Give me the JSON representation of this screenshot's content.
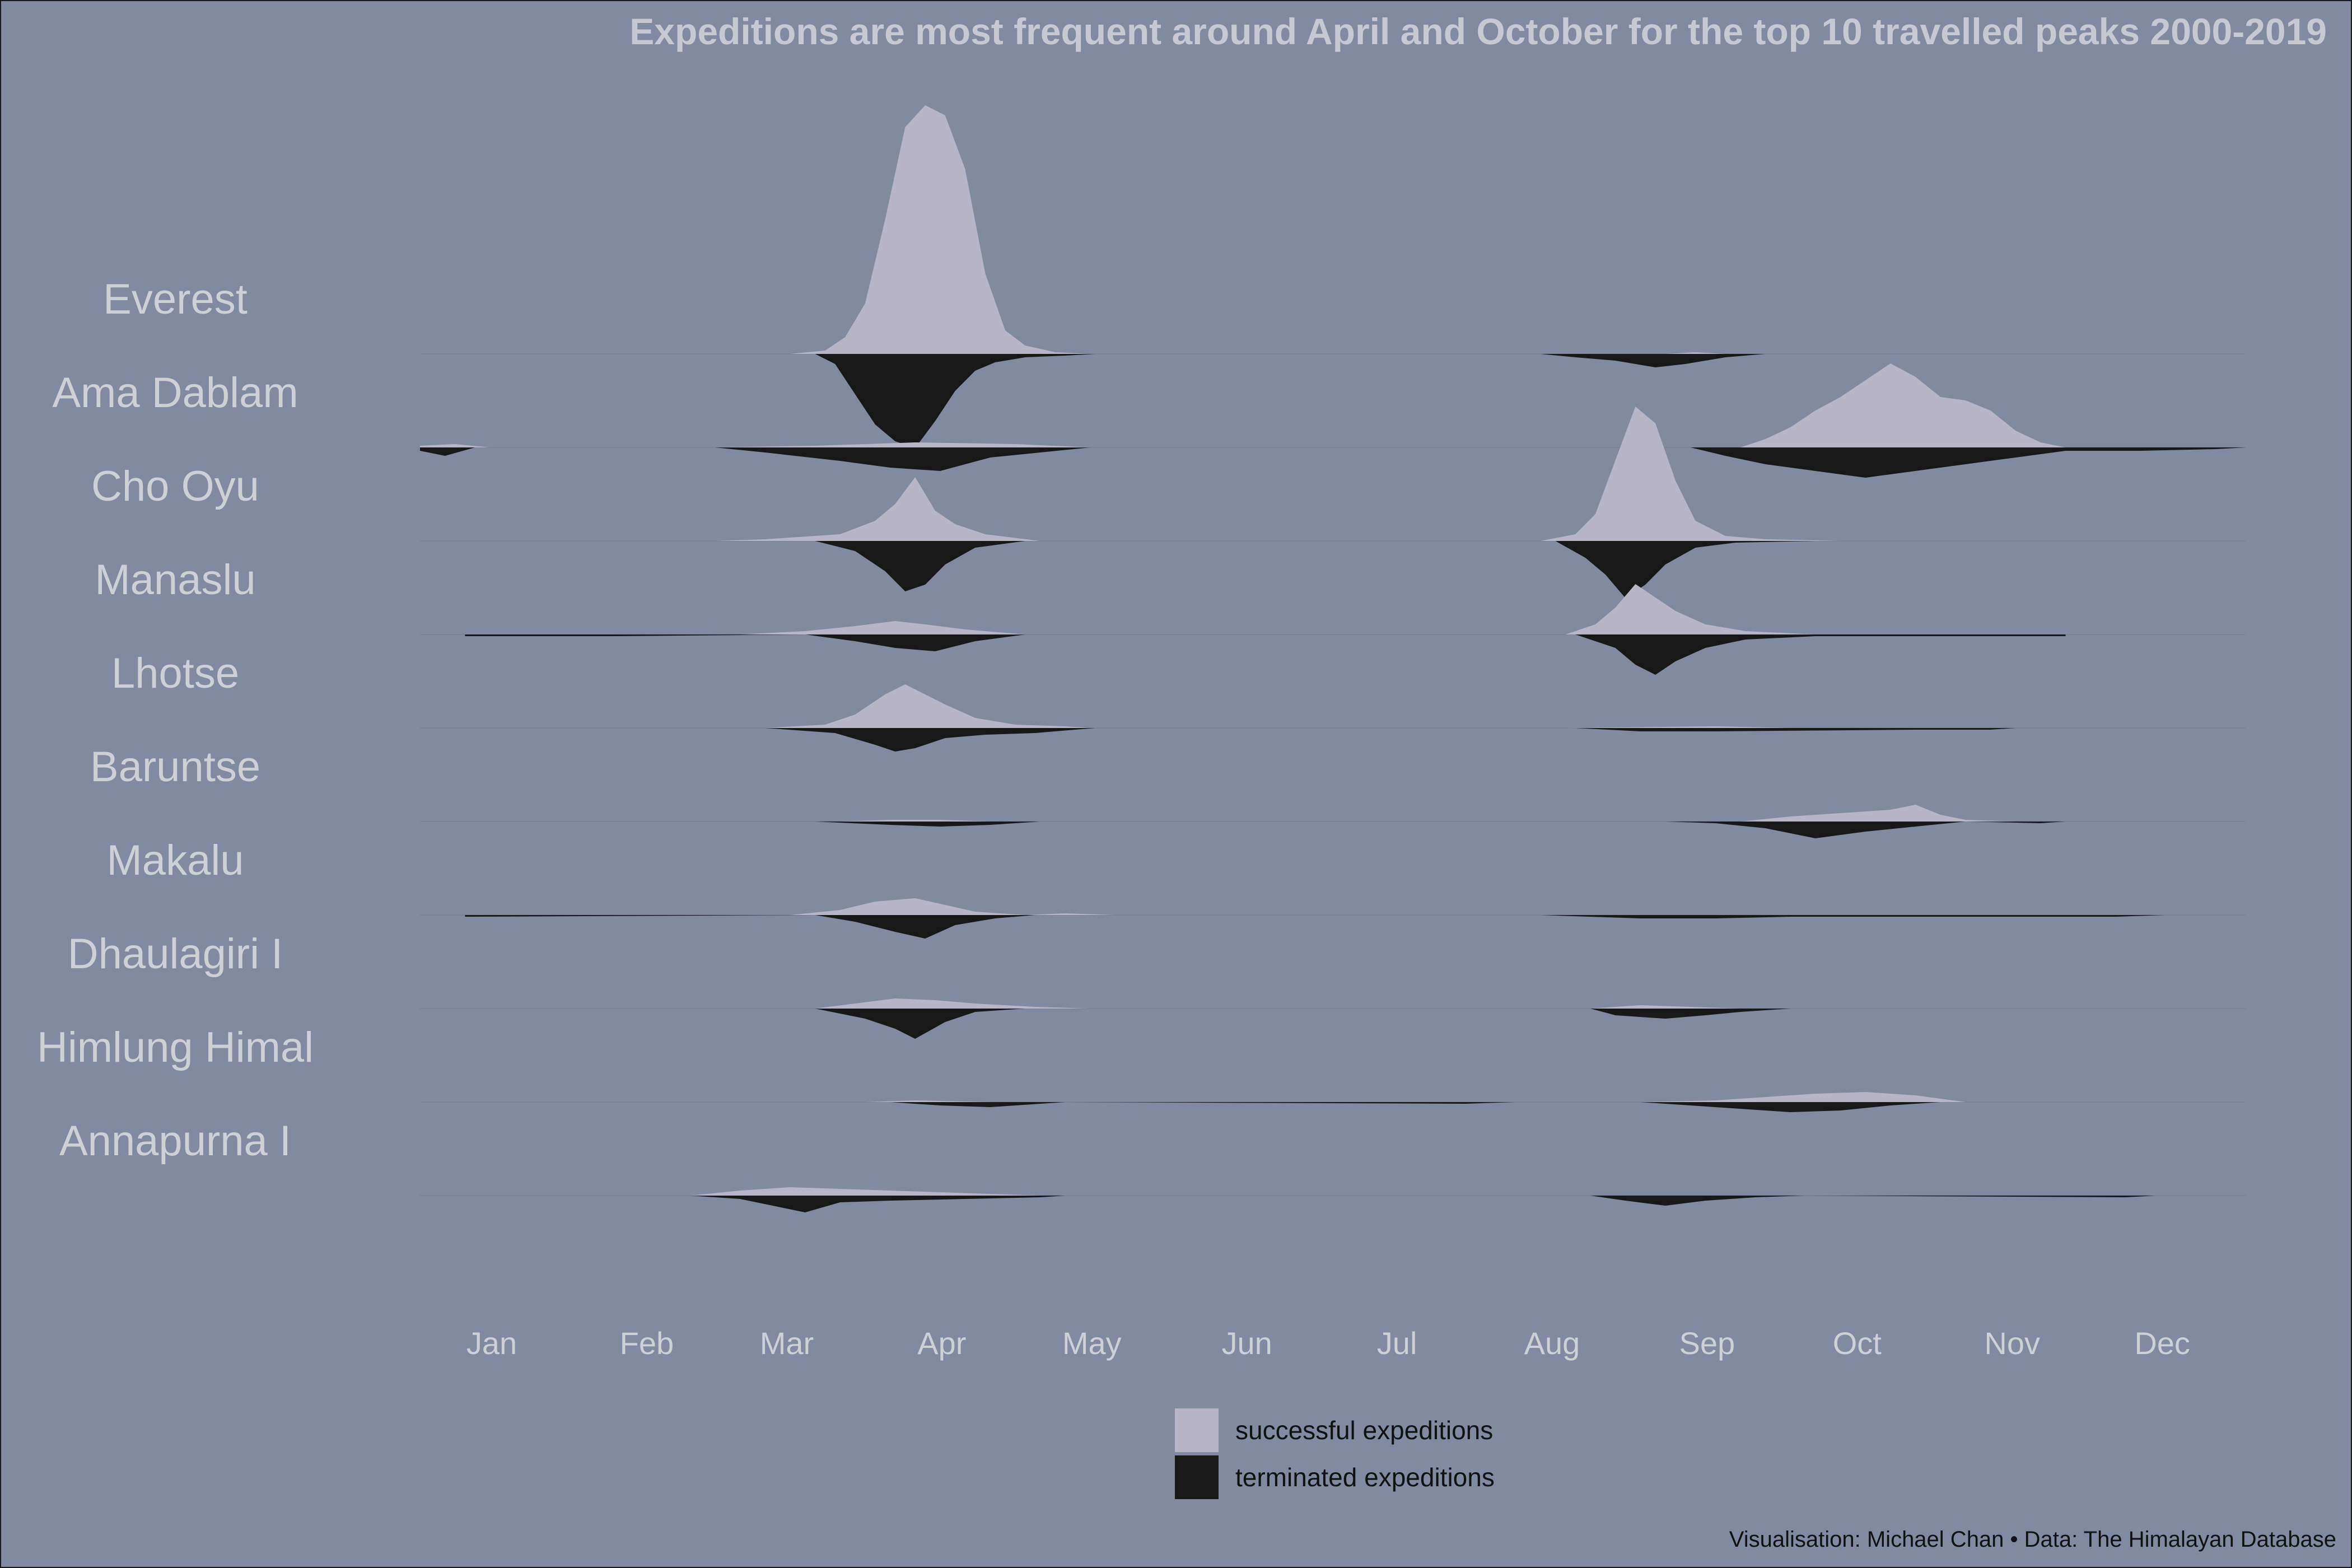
{
  "title": "Expeditions are most frequent around April and October for the top 10 travelled peaks 2000-2019",
  "caption": "Visualisation: Michael Chan • Data: The Himalayan Database",
  "legend": [
    {
      "label": "successful expeditions",
      "color": "#b8b6c6"
    },
    {
      "label": "terminated expeditions",
      "color": "#181818"
    }
  ],
  "chart_data": {
    "type": "area",
    "subtype": "mirrored ridgeline (successful above baseline, terminated below)",
    "months": [
      "Jan",
      "Feb",
      "Mar",
      "Apr",
      "May",
      "Jun",
      "Jul",
      "Aug",
      "Sep",
      "Oct",
      "Nov",
      "Dec"
    ],
    "x_unit": "day of year",
    "month_start_days": [
      1,
      32,
      60,
      91,
      121,
      152,
      182,
      213,
      244,
      274,
      305,
      335
    ],
    "y_unit": "expeditions per day (relative, estimated)",
    "series_colors": {
      "successful": "#b8b6c6",
      "terminated": "#181818"
    },
    "peaks": [
      {
        "name": "Everest",
        "successful": [
          [
            75,
            0
          ],
          [
            82,
            2
          ],
          [
            86,
            10
          ],
          [
            90,
            30
          ],
          [
            94,
            80
          ],
          [
            98,
            135
          ],
          [
            102,
            148
          ],
          [
            106,
            142
          ],
          [
            110,
            110
          ],
          [
            114,
            48
          ],
          [
            118,
            14
          ],
          [
            122,
            5
          ],
          [
            128,
            1
          ],
          [
            135,
            0
          ],
          [
            250,
            0
          ],
          [
            256,
            1
          ],
          [
            262,
            0
          ]
        ],
        "terminated": [
          [
            80,
            0
          ],
          [
            84,
            6
          ],
          [
            88,
            24
          ],
          [
            92,
            42
          ],
          [
            96,
            52
          ],
          [
            100,
            56
          ],
          [
            104,
            40
          ],
          [
            108,
            22
          ],
          [
            112,
            10
          ],
          [
            116,
            5
          ],
          [
            122,
            2
          ],
          [
            130,
            1
          ],
          [
            136,
            0
          ],
          [
            225,
            0
          ],
          [
            232,
            2
          ],
          [
            240,
            4
          ],
          [
            248,
            8
          ],
          [
            254,
            6
          ],
          [
            262,
            2
          ],
          [
            270,
            0
          ]
        ]
      },
      {
        "name": "Ama Dablam",
        "successful": [
          [
            1,
            1
          ],
          [
            8,
            2
          ],
          [
            15,
            0
          ],
          [
            60,
            0
          ],
          [
            80,
            1
          ],
          [
            100,
            3
          ],
          [
            120,
            2
          ],
          [
            135,
            0
          ],
          [
            265,
            0
          ],
          [
            270,
            5
          ],
          [
            275,
            12
          ],
          [
            280,
            22
          ],
          [
            285,
            30
          ],
          [
            290,
            40
          ],
          [
            295,
            50
          ],
          [
            300,
            42
          ],
          [
            305,
            30
          ],
          [
            310,
            28
          ],
          [
            315,
            22
          ],
          [
            320,
            10
          ],
          [
            325,
            3
          ],
          [
            330,
            0
          ]
        ],
        "terminated": [
          [
            1,
            2
          ],
          [
            6,
            5
          ],
          [
            12,
            0
          ],
          [
            60,
            0
          ],
          [
            70,
            3
          ],
          [
            85,
            8
          ],
          [
            95,
            12
          ],
          [
            105,
            14
          ],
          [
            115,
            6
          ],
          [
            125,
            3
          ],
          [
            135,
            0
          ],
          [
            255,
            0
          ],
          [
            262,
            5
          ],
          [
            270,
            10
          ],
          [
            280,
            14
          ],
          [
            290,
            18
          ],
          [
            300,
            14
          ],
          [
            310,
            10
          ],
          [
            320,
            6
          ],
          [
            330,
            2
          ],
          [
            345,
            2
          ],
          [
            360,
            1
          ],
          [
            366,
            0
          ]
        ]
      },
      {
        "name": "Cho Oyu",
        "successful": [
          [
            60,
            0
          ],
          [
            70,
            1
          ],
          [
            85,
            4
          ],
          [
            92,
            12
          ],
          [
            96,
            22
          ],
          [
            100,
            38
          ],
          [
            104,
            18
          ],
          [
            108,
            10
          ],
          [
            114,
            4
          ],
          [
            125,
            0
          ],
          [
            225,
            0
          ],
          [
            232,
            4
          ],
          [
            236,
            16
          ],
          [
            240,
            48
          ],
          [
            244,
            80
          ],
          [
            248,
            70
          ],
          [
            252,
            36
          ],
          [
            256,
            12
          ],
          [
            262,
            3
          ],
          [
            270,
            1
          ],
          [
            285,
            0
          ]
        ],
        "terminated": [
          [
            80,
            0
          ],
          [
            88,
            6
          ],
          [
            94,
            18
          ],
          [
            98,
            30
          ],
          [
            102,
            26
          ],
          [
            106,
            14
          ],
          [
            112,
            4
          ],
          [
            122,
            0
          ],
          [
            228,
            0
          ],
          [
            234,
            10
          ],
          [
            238,
            20
          ],
          [
            242,
            34
          ],
          [
            246,
            26
          ],
          [
            250,
            14
          ],
          [
            256,
            4
          ],
          [
            264,
            1
          ],
          [
            280,
            0
          ]
        ]
      },
      {
        "name": "Manaslu",
        "successful": [
          [
            65,
            0
          ],
          [
            78,
            2
          ],
          [
            88,
            5
          ],
          [
            96,
            8
          ],
          [
            102,
            6
          ],
          [
            110,
            3
          ],
          [
            122,
            0
          ],
          [
            230,
            0
          ],
          [
            236,
            6
          ],
          [
            240,
            16
          ],
          [
            244,
            30
          ],
          [
            248,
            22
          ],
          [
            252,
            14
          ],
          [
            258,
            6
          ],
          [
            266,
            2
          ],
          [
            280,
            0
          ]
        ],
        "terminated": [
          [
            10,
            1
          ],
          [
            40,
            1
          ],
          [
            78,
            0
          ],
          [
            88,
            4
          ],
          [
            96,
            8
          ],
          [
            104,
            10
          ],
          [
            112,
            4
          ],
          [
            122,
            0
          ],
          [
            232,
            0
          ],
          [
            240,
            8
          ],
          [
            244,
            18
          ],
          [
            248,
            24
          ],
          [
            252,
            16
          ],
          [
            258,
            8
          ],
          [
            266,
            3
          ],
          [
            280,
            1
          ],
          [
            330,
            1
          ]
        ]
      },
      {
        "name": "Lhotse",
        "successful": [
          [
            70,
            0
          ],
          [
            82,
            2
          ],
          [
            88,
            8
          ],
          [
            94,
            20
          ],
          [
            98,
            26
          ],
          [
            102,
            20
          ],
          [
            106,
            14
          ],
          [
            112,
            6
          ],
          [
            120,
            2
          ],
          [
            130,
            1
          ],
          [
            135,
            0
          ],
          [
            230,
            0
          ],
          [
            260,
            1
          ],
          [
            275,
            0
          ]
        ],
        "terminated": [
          [
            70,
            0
          ],
          [
            84,
            3
          ],
          [
            92,
            10
          ],
          [
            96,
            14
          ],
          [
            100,
            12
          ],
          [
            106,
            6
          ],
          [
            114,
            4
          ],
          [
            124,
            3
          ],
          [
            132,
            1
          ],
          [
            136,
            0
          ],
          [
            232,
            0
          ],
          [
            245,
            2
          ],
          [
            260,
            2
          ],
          [
            300,
            1
          ],
          [
            315,
            1
          ],
          [
            320,
            0
          ]
        ]
      },
      {
        "name": "Baruntse",
        "successful": [
          [
            85,
            0
          ],
          [
            95,
            1
          ],
          [
            105,
            1
          ],
          [
            115,
            0
          ],
          [
            265,
            0
          ],
          [
            275,
            3
          ],
          [
            285,
            5
          ],
          [
            295,
            7
          ],
          [
            300,
            10
          ],
          [
            305,
            4
          ],
          [
            310,
            1
          ],
          [
            320,
            0
          ]
        ],
        "terminated": [
          [
            80,
            0
          ],
          [
            95,
            2
          ],
          [
            105,
            3
          ],
          [
            115,
            2
          ],
          [
            125,
            0
          ],
          [
            250,
            0
          ],
          [
            260,
            1
          ],
          [
            270,
            4
          ],
          [
            280,
            10
          ],
          [
            290,
            6
          ],
          [
            300,
            3
          ],
          [
            310,
            0
          ],
          [
            325,
            1
          ],
          [
            330,
            0
          ]
        ]
      },
      {
        "name": "Makalu",
        "successful": [
          [
            75,
            0
          ],
          [
            85,
            3
          ],
          [
            92,
            8
          ],
          [
            100,
            10
          ],
          [
            106,
            6
          ],
          [
            112,
            2
          ],
          [
            122,
            0
          ],
          [
            130,
            1
          ],
          [
            140,
            0
          ]
        ],
        "terminated": [
          [
            10,
            1
          ],
          [
            80,
            0
          ],
          [
            88,
            4
          ],
          [
            96,
            10
          ],
          [
            102,
            14
          ],
          [
            108,
            6
          ],
          [
            116,
            2
          ],
          [
            124,
            0
          ],
          [
            225,
            0
          ],
          [
            245,
            2
          ],
          [
            260,
            2
          ],
          [
            275,
            1
          ],
          [
            340,
            1
          ],
          [
            350,
            0
          ]
        ]
      },
      {
        "name": "Dhaulagiri I",
        "successful": [
          [
            3,
            0
          ],
          [
            80,
            0
          ],
          [
            88,
            3
          ],
          [
            96,
            6
          ],
          [
            104,
            5
          ],
          [
            112,
            3
          ],
          [
            124,
            1
          ],
          [
            135,
            0
          ],
          [
            235,
            0
          ],
          [
            245,
            2
          ],
          [
            255,
            1
          ],
          [
            265,
            0
          ]
        ],
        "terminated": [
          [
            80,
            0
          ],
          [
            90,
            6
          ],
          [
            96,
            12
          ],
          [
            100,
            18
          ],
          [
            106,
            8
          ],
          [
            112,
            2
          ],
          [
            122,
            0
          ],
          [
            235,
            0
          ],
          [
            240,
            4
          ],
          [
            250,
            6
          ],
          [
            258,
            4
          ],
          [
            265,
            2
          ],
          [
            275,
            0
          ]
        ]
      },
      {
        "name": "Himlung Himal",
        "successful": [
          [
            90,
            0
          ],
          [
            100,
            1
          ],
          [
            115,
            0
          ],
          [
            245,
            0
          ],
          [
            260,
            1
          ],
          [
            270,
            3
          ],
          [
            280,
            5
          ],
          [
            290,
            6
          ],
          [
            300,
            4
          ],
          [
            310,
            0
          ]
        ],
        "terminated": [
          [
            95,
            0
          ],
          [
            105,
            2
          ],
          [
            115,
            3
          ],
          [
            125,
            1
          ],
          [
            130,
            0
          ],
          [
            210,
            1
          ],
          [
            220,
            0
          ],
          [
            245,
            0
          ],
          [
            255,
            2
          ],
          [
            265,
            4
          ],
          [
            275,
            6
          ],
          [
            285,
            5
          ],
          [
            295,
            2
          ],
          [
            305,
            0
          ]
        ]
      },
      {
        "name": "Annapurna I",
        "successful": [
          [
            55,
            0
          ],
          [
            65,
            3
          ],
          [
            75,
            5
          ],
          [
            85,
            4
          ],
          [
            95,
            3
          ],
          [
            105,
            2
          ],
          [
            115,
            1
          ],
          [
            125,
            0
          ]
        ],
        "terminated": [
          [
            55,
            0
          ],
          [
            65,
            2
          ],
          [
            78,
            10
          ],
          [
            85,
            4
          ],
          [
            95,
            3
          ],
          [
            110,
            2
          ],
          [
            125,
            1
          ],
          [
            130,
            0
          ],
          [
            235,
            0
          ],
          [
            242,
            3
          ],
          [
            250,
            6
          ],
          [
            258,
            3
          ],
          [
            268,
            1
          ],
          [
            278,
            0
          ],
          [
            342,
            1
          ],
          [
            348,
            0
          ]
        ]
      }
    ]
  }
}
